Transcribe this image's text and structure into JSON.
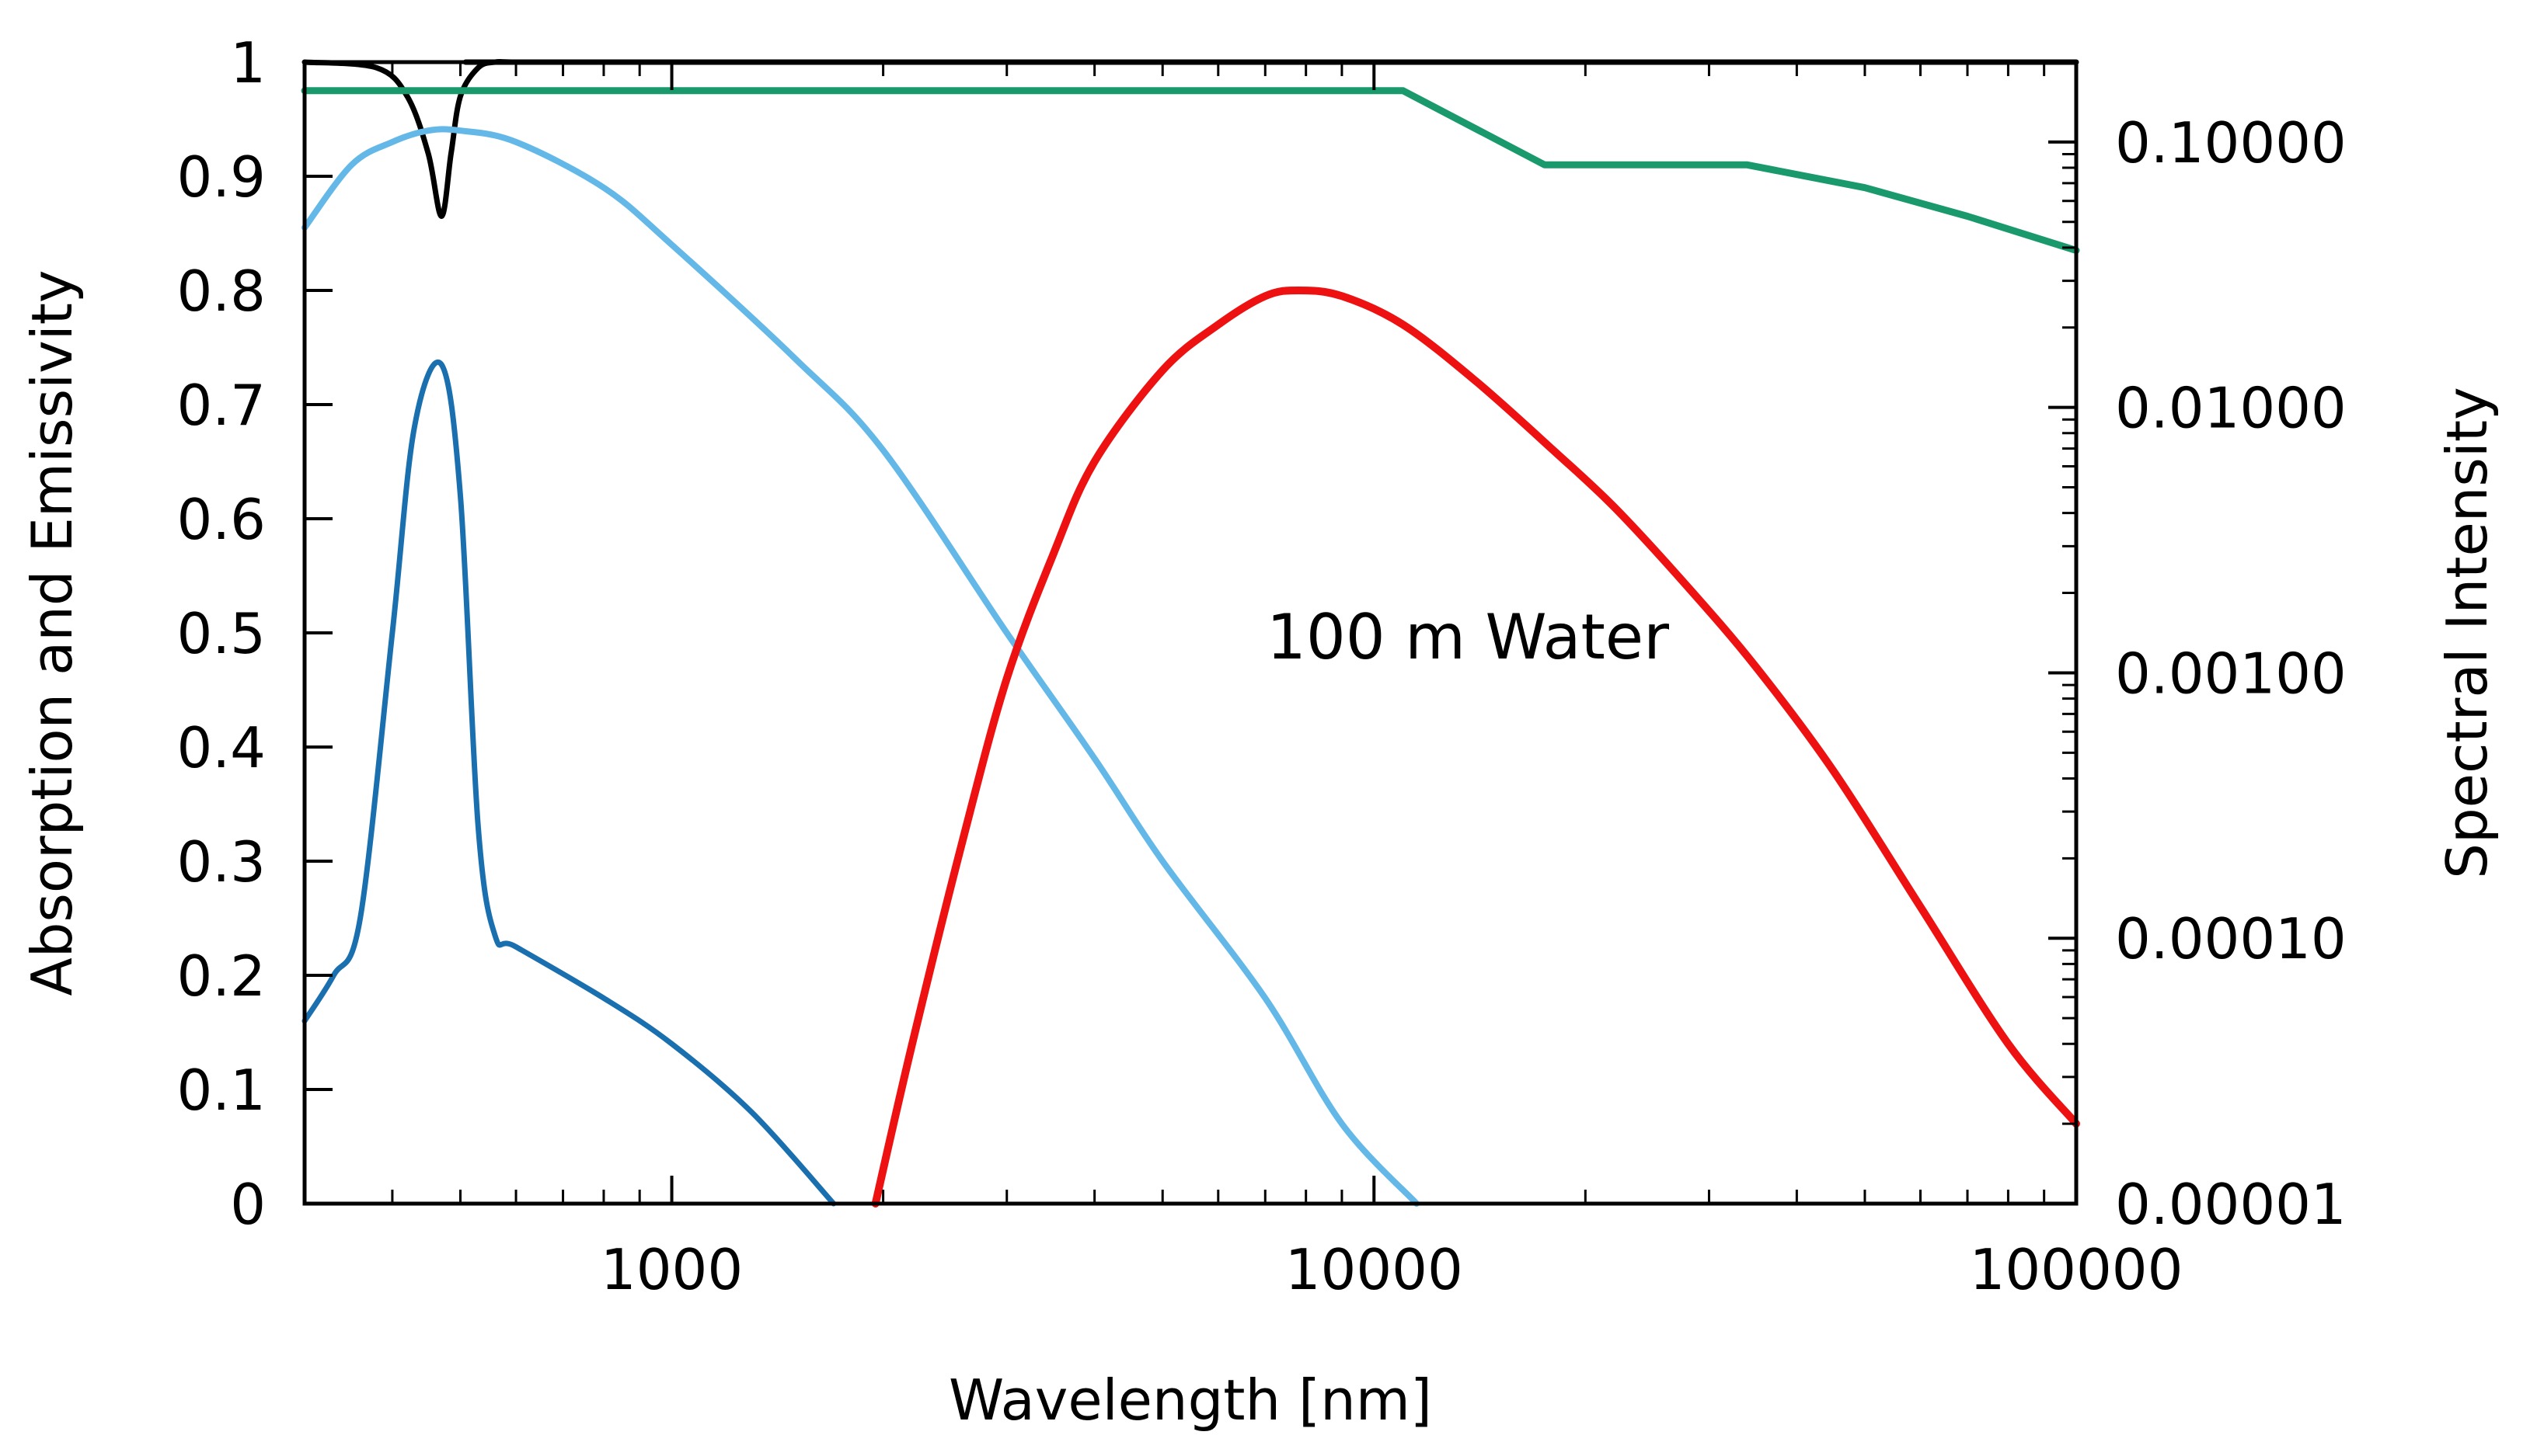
{
  "chart_data": {
    "type": "line",
    "title": "",
    "annotation": "100 m Water",
    "xlabel": "Wavelength [nm]",
    "ylabel_left": "Absorption and Emissivity",
    "ylabel_right": "Spectral Intensity",
    "xscale": "log",
    "xlim": [
      300,
      100000
    ],
    "ylim_left": [
      0,
      1
    ],
    "ylim_right": [
      1e-05,
      0.2
    ],
    "yscale_right": "log",
    "grid": false,
    "x_ticks": [
      1000,
      10000,
      100000
    ],
    "x_tick_labels": [
      "1000",
      "10000",
      "100000"
    ],
    "y_left_ticks": [
      0,
      0.1,
      0.2,
      0.3,
      0.4,
      0.5,
      0.6,
      0.7,
      0.8,
      0.9,
      1
    ],
    "y_left_tick_labels": [
      "0",
      "0.1",
      "0.2",
      "0.3",
      "0.4",
      "0.5",
      "0.6",
      "0.7",
      "0.8",
      "0.9",
      "1"
    ],
    "y_right_ticks": [
      1e-05,
      0.0001,
      0.001,
      0.01,
      0.1
    ],
    "y_right_tick_labels": [
      "0.00001",
      "0.00010",
      "0.00100",
      "0.01000",
      "0.10000"
    ],
    "series": [
      {
        "name": "black",
        "color": "#000000",
        "axis": "left",
        "x": [
          300,
          380,
          420,
          450,
          470,
          485,
          500,
          530,
          560,
          600,
          800,
          100000
        ],
        "y": [
          1.0,
          0.995,
          0.97,
          0.92,
          0.865,
          0.92,
          0.97,
          0.995,
          1.0,
          1.0,
          1.0,
          1.0
        ]
      },
      {
        "name": "green",
        "color": "#1a9a6c",
        "axis": "left",
        "x": [
          300,
          11000,
          17500,
          34000,
          50000,
          70000,
          100000
        ],
        "y": [
          0.975,
          0.975,
          0.91,
          0.91,
          0.89,
          0.865,
          0.835
        ]
      },
      {
        "name": "light blue",
        "color": "#63b8e8",
        "axis": "left",
        "x": [
          300,
          350,
          400,
          450,
          500,
          600,
          800,
          1000,
          1500,
          2000,
          3000,
          4000,
          5000,
          7000,
          9000,
          11500
        ],
        "y": [
          0.855,
          0.91,
          0.93,
          0.94,
          0.94,
          0.93,
          0.89,
          0.84,
          0.74,
          0.66,
          0.5,
          0.39,
          0.3,
          0.18,
          0.07,
          0.0
        ]
      },
      {
        "name": "dark blue",
        "color": "#1a6faf",
        "axis": "left",
        "x": [
          300,
          330,
          360,
          400,
          430,
          470,
          500,
          530,
          560,
          600,
          800,
          1000,
          1300,
          1700
        ],
        "y": [
          0.16,
          0.2,
          0.25,
          0.5,
          0.68,
          0.735,
          0.62,
          0.33,
          0.235,
          0.225,
          0.18,
          0.14,
          0.08,
          0.0
        ]
      },
      {
        "name": "red",
        "color": "#ee1111",
        "axis": "left",
        "x": [
          1950,
          2200,
          2600,
          3000,
          3500,
          4000,
          5000,
          6000,
          7000,
          7800,
          9000,
          11000,
          14000,
          18000,
          22000,
          28000,
          35000,
          45000,
          60000,
          80000,
          100000
        ],
        "y": [
          0.0,
          0.14,
          0.32,
          0.46,
          0.57,
          0.65,
          0.73,
          0.77,
          0.795,
          0.8,
          0.795,
          0.77,
          0.72,
          0.66,
          0.61,
          0.54,
          0.47,
          0.38,
          0.26,
          0.14,
          0.07
        ]
      }
    ]
  }
}
